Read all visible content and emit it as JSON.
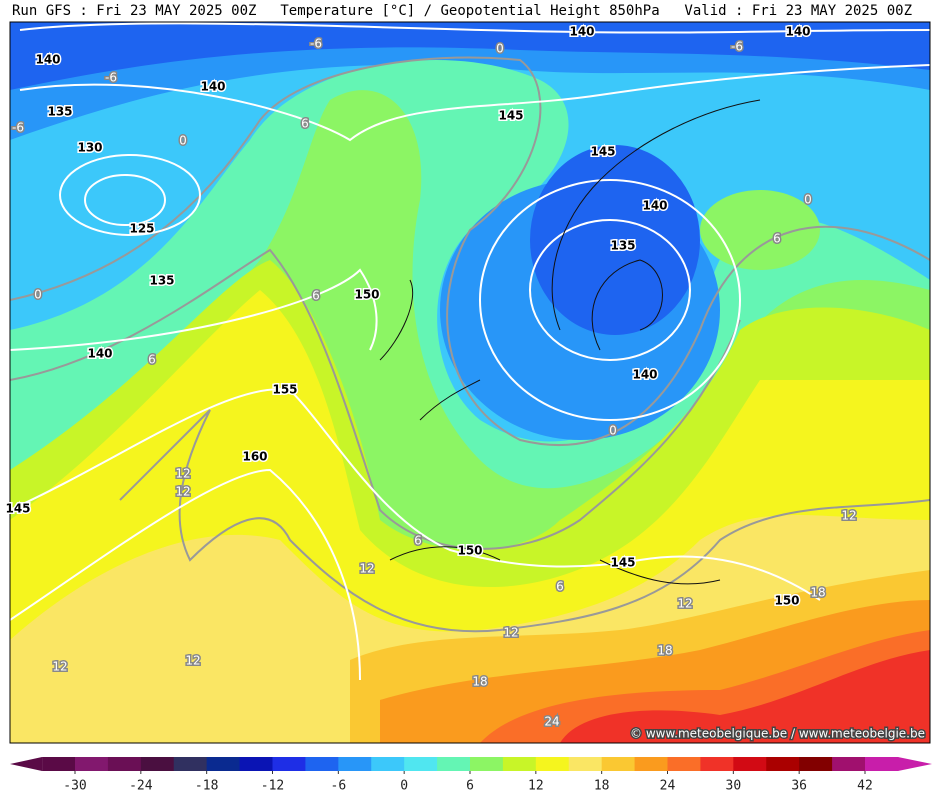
{
  "header": {
    "left": "Run GFS : Fri 23 MAY 2025 00Z",
    "center": "Temperature [°C] / Geopotential Height 850hPa",
    "right": "Valid : Fri 23 MAY 2025 00Z"
  },
  "map": {
    "height_labels": [
      140,
      140,
      135,
      130,
      125,
      135,
      140,
      145,
      155,
      160,
      150,
      145,
      145,
      140,
      135,
      140,
      140,
      140,
      150,
      145,
      150
    ],
    "temperature_labels": [
      -6,
      0,
      -6,
      -6,
      -6,
      6,
      0,
      0,
      6,
      6,
      0,
      6,
      0,
      12,
      12,
      6,
      12,
      6,
      12,
      12,
      18,
      12,
      18,
      18,
      12,
      12,
      24
    ],
    "credit": "© www.meteobelgique.be / www.meteobelgie.be"
  },
  "colorbar": {
    "ticks": [
      -30,
      -24,
      -18,
      -12,
      -6,
      0,
      6,
      12,
      18,
      24,
      30,
      36,
      42
    ],
    "colors": [
      "#5a0a46",
      "#82186e",
      "#6a0f55",
      "#4a0f40",
      "#303060",
      "#0a2a90",
      "#0a14b4",
      "#1e2ee6",
      "#1e64f0",
      "#2896f8",
      "#3cc8fa",
      "#50e6f0",
      "#64f5b4",
      "#8cf564",
      "#c8f528",
      "#f5f51e",
      "#fae664",
      "#fac832",
      "#fa9b1e",
      "#fa6e28",
      "#f03228",
      "#d20a14",
      "#aa0000",
      "#820000",
      "#a0106e",
      "#c81eaa"
    ]
  }
}
